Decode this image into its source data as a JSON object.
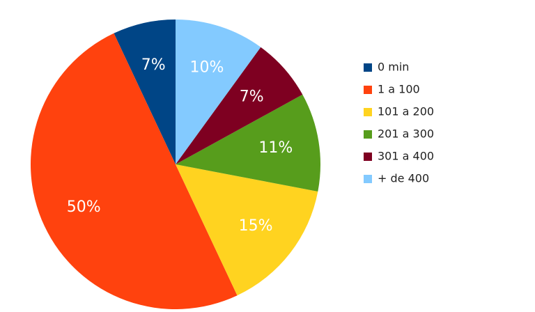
{
  "chart_data": {
    "type": "pie",
    "categories": [
      "0 min",
      "1 a 100",
      "101 a 200",
      "201 a 300",
      "301 a 400",
      "+ de 400"
    ],
    "values": [
      7,
      50,
      15,
      11,
      7,
      10
    ],
    "value_labels": [
      "7%",
      "50%",
      "15%",
      "11%",
      "7%",
      "10%"
    ],
    "colors": [
      "#004586",
      "#ff420e",
      "#ffd320",
      "#579d1c",
      "#7e0021",
      "#83caff"
    ]
  }
}
